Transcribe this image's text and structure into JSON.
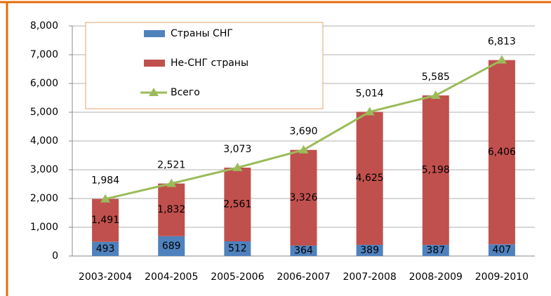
{
  "chart_data": {
    "type": "bar",
    "stacked": true,
    "categories": [
      "2003-2004",
      "2004-2005",
      "2005-2006",
      "2006-2007",
      "2007-2008",
      "2008-2009",
      "2009-2010"
    ],
    "series": [
      {
        "name": "Страны СНГ",
        "color": "#4f81bd",
        "values": [
          493,
          689,
          512,
          364,
          389,
          387,
          407
        ]
      },
      {
        "name": "Не-СНГ страны",
        "color": "#c0504d",
        "values": [
          1491,
          1832,
          2561,
          3326,
          4625,
          5198,
          6406
        ],
        "value_labels": [
          "1,491",
          "1,832",
          "2,561",
          "3,326",
          "4,625",
          "5,198",
          "6,406"
        ]
      },
      {
        "name": "Всего",
        "type": "line",
        "color": "#9bbb59",
        "values": [
          1984,
          2521,
          3073,
          3690,
          5014,
          5585,
          6813
        ],
        "value_labels": [
          "1,984",
          "2,521",
          "3,073",
          "3,690",
          "5,014",
          "5,585",
          "6,813"
        ]
      }
    ],
    "ylim": [
      0,
      8000
    ],
    "yticks": [
      0,
      {
        "value": 1000,
        "label": "1,000"
      },
      {
        "value": 2000,
        "label": "2,000"
      },
      {
        "value": 3000,
        "label": "3,000"
      },
      {
        "value": 4000,
        "label": "4,000"
      },
      {
        "value": 5000,
        "label": "5,000"
      },
      {
        "value": 6000,
        "label": "6,000"
      },
      {
        "value": 7000,
        "label": "7,000"
      },
      {
        "value": 8000,
        "label": "8,000"
      }
    ],
    "grid": true
  }
}
